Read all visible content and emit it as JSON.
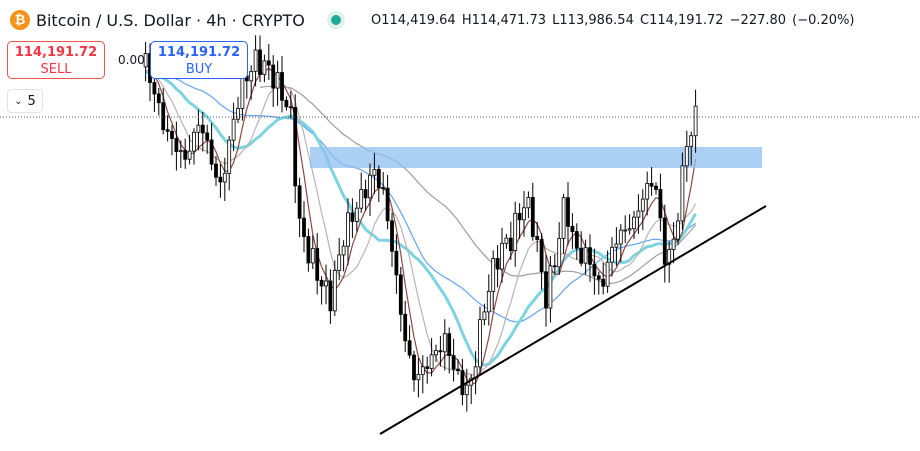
{
  "header": {
    "symbol_title": "Bitcoin / U.S. Dollar · 4h · CRYPTO",
    "icon": "bitcoin-icon",
    "market_status_color": "#22ab94",
    "ohlc": {
      "open": "O114,419.64",
      "high": "H114,471.73",
      "low": "L113,986.54",
      "close": "C114,191.72",
      "change": "−227.80 (−0.20%)"
    }
  },
  "trade": {
    "sell_price": "114,191.72",
    "sell_label": "SELL",
    "spread": "0.00",
    "buy_price": "114,191.72",
    "buy_label": "BUY"
  },
  "indicators_toggle": {
    "label": "5",
    "icon": "chevron-down-icon"
  },
  "colors": {
    "zone": "#90bff0",
    "ma_fast": "#8d4a44",
    "ma_light": "#b9b4b2",
    "ma_cyan": "#7dd3e0",
    "ma_blue": "#64a4ef",
    "ma_gray": "#a09c9c"
  }
}
